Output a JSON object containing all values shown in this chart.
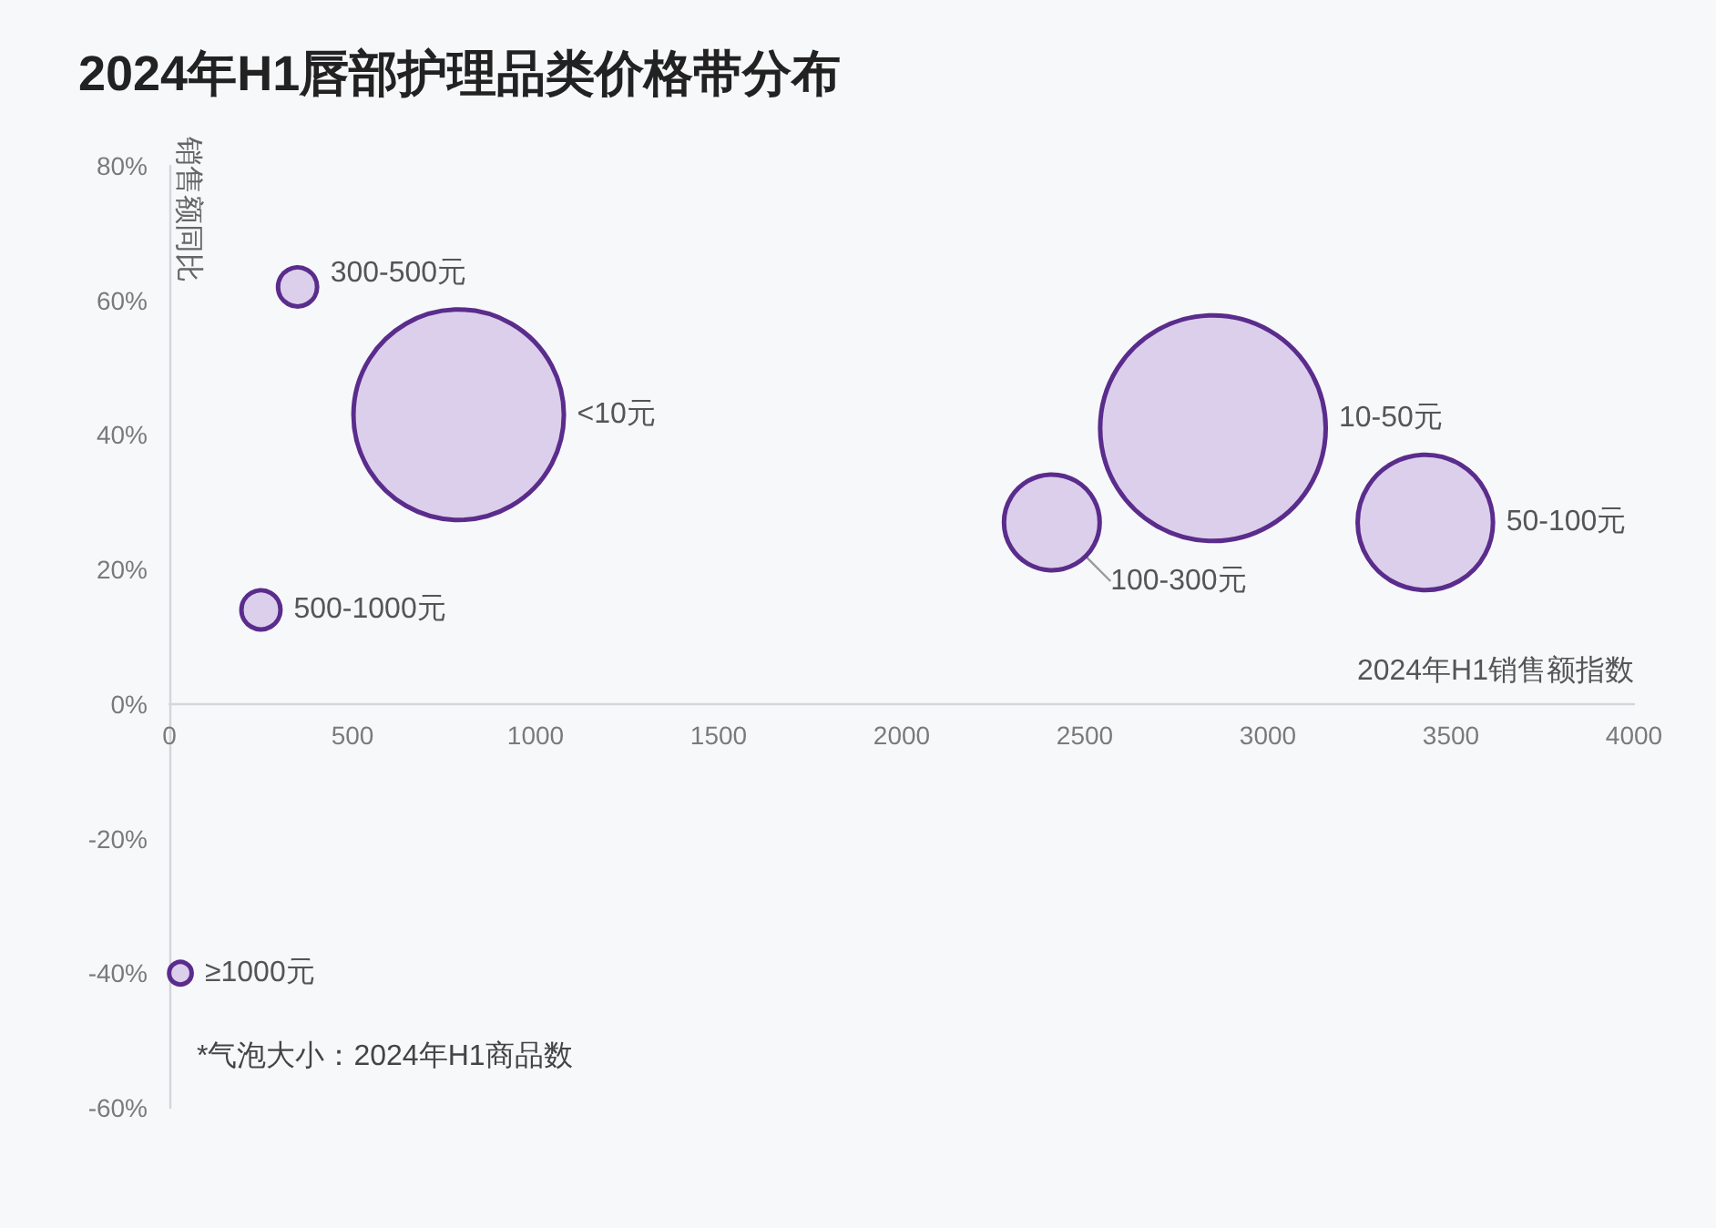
{
  "chart_data": {
    "type": "bubble",
    "title": "2024年H1唇部护理品类价格带分布",
    "xlabel": "2024年H1销售额指数",
    "ylabel": "销售额同比",
    "annotations": [
      "*气泡大小：2024年H1商品数"
    ],
    "xlim": [
      0,
      4000
    ],
    "xticks": [
      0,
      500,
      1000,
      1500,
      2000,
      2500,
      3000,
      3500,
      4000
    ],
    "ylim": [
      -60,
      80
    ],
    "yticks": [
      {
        "value": -60,
        "label": "-60%"
      },
      {
        "value": -40,
        "label": "-40%"
      },
      {
        "value": -20,
        "label": "-20%"
      },
      {
        "value": 0,
        "label": "0%"
      },
      {
        "value": 20,
        "label": "20%"
      },
      {
        "value": 40,
        "label": "40%"
      },
      {
        "value": 60,
        "label": "60%"
      },
      {
        "value": 80,
        "label": "80%"
      }
    ],
    "grid": false,
    "series": [
      {
        "name": "300-500元",
        "color": "#dccfeb",
        "x": [
          350
        ],
        "values": [
          62
        ],
        "sizes": [
          0.03
        ]
      },
      {
        "name": "<10元",
        "color": "#dccfeb",
        "x": [
          790
        ],
        "values": [
          43
        ],
        "sizes": [
          0.87
        ]
      },
      {
        "name": "500-1000元",
        "color": "#dccfeb",
        "x": [
          250
        ],
        "values": [
          14
        ],
        "sizes": [
          0.03
        ]
      },
      {
        "name": "10-50元",
        "color": "#dccfeb",
        "x": [
          2850
        ],
        "values": [
          41
        ],
        "sizes": [
          1
        ]
      },
      {
        "name": "100-300元",
        "color": "#dccfeb",
        "x": [
          2410
        ],
        "values": [
          27
        ],
        "sizes": [
          0.18
        ]
      },
      {
        "name": "50-100元",
        "color": "#dccfeb",
        "x": [
          3430
        ],
        "values": [
          27
        ],
        "sizes": [
          0.36
        ]
      },
      {
        "name": "≥1000元",
        "color": "#dccfeb",
        "x": [
          30
        ],
        "values": [
          -40
        ],
        "sizes": [
          0.01
        ]
      }
    ]
  }
}
